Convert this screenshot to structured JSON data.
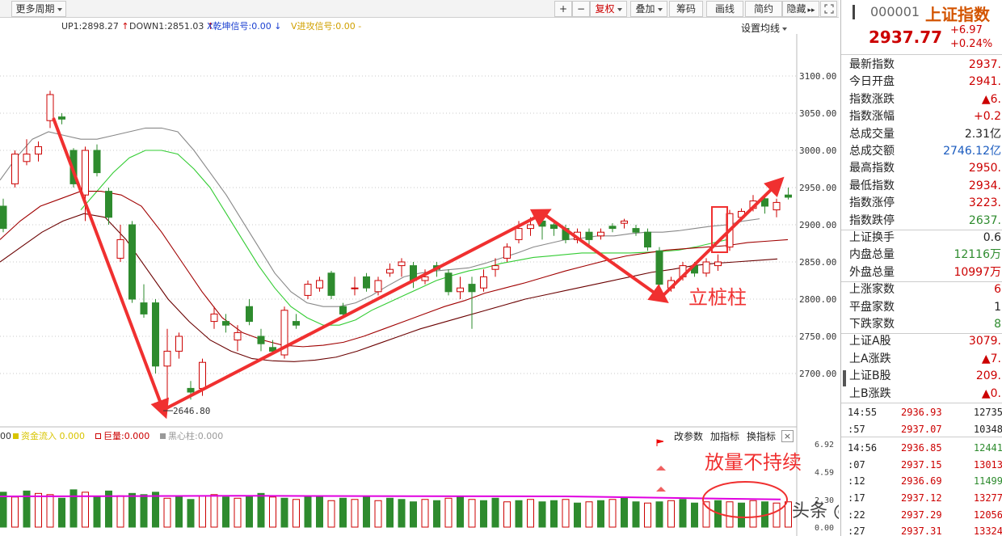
{
  "toolbar": {
    "more_period": "更多周期",
    "zoom_in": "+",
    "zoom_out": "−",
    "fuquan": "复权",
    "overlay": "叠加",
    "chips": "筹码",
    "draw_line": "画线",
    "simple": "简约",
    "hide": "隐藏",
    "hide_arrows": "▸▸",
    "fullscreen_icon": "expand-icon"
  },
  "indicators": {
    "up1": "UP1:2898.27",
    "down1": "DOWN1:2851.03",
    "x_signal": "X乾坤信号:0.00",
    "v_signal": "V进攻信号:0.00",
    "set_ma": "设置均线"
  },
  "price_axis": [
    "3100.00",
    "3050.00",
    "3000.00",
    "2950.00",
    "2900.00",
    "2850.00",
    "2800.00",
    "2750.00",
    "2700.00"
  ],
  "volume_axis": [
    "6.92",
    "4.59",
    "2.30",
    "0.00"
  ],
  "low_marker": "2646.80",
  "annotation_pile": "立桩柱",
  "annotation_volume": "放量不持续",
  "watermark": "头条 @朱超MSc",
  "volume_header": {
    "lead": "00",
    "fund_inflow": "资金流入 0.000",
    "big_volume": "巨量:0.000",
    "black_heart": "黑心柱:0.000"
  },
  "volume_buttons": {
    "change_param": "改参数",
    "add_indicator": "加指标",
    "switch_indicator": "换指标",
    "close": "×"
  },
  "colors": {
    "up": "#cc0000",
    "down": "#2e8b2e",
    "arrow": "#f03030",
    "ma_gray": "#888888",
    "ma_red": "#a00000",
    "ma_green": "#33cc33",
    "volume_line": "#e000e0"
  },
  "quote": {
    "code": "000001",
    "name": "上证指数",
    "price": "2937.77",
    "change": "+6.97",
    "change_pct": "+0.24%"
  },
  "stats": [
    {
      "label": "最新指数",
      "value": "2937.",
      "color": "#c00"
    },
    {
      "label": "今日开盘",
      "value": "2941.",
      "color": "#c00"
    },
    {
      "label": "指数涨跌",
      "value": "▲6.",
      "color": "#c00"
    },
    {
      "label": "指数涨幅",
      "value": "+0.2",
      "color": "#c00"
    },
    {
      "label": "总成交量",
      "value": "2.31亿",
      "color": "#222"
    },
    {
      "label": "总成交额",
      "value": "2746.12亿",
      "color": "#1a5bbf"
    },
    {
      "label": "最高指数",
      "value": "2950.",
      "color": "#c00"
    },
    {
      "label": "最低指数",
      "value": "2934.",
      "color": "#c00"
    },
    {
      "label": "指数涨停",
      "value": "3223.",
      "color": "#c00"
    },
    {
      "label": "指数跌停",
      "value": "2637.",
      "color": "#2e8b2e"
    },
    {
      "label": "上证换手",
      "value": "0.6",
      "color": "#222"
    },
    {
      "label": "内盘总量",
      "value": "12116万",
      "color": "#2e8b2e"
    },
    {
      "label": "外盘总量",
      "value": "10997万",
      "color": "#c00"
    },
    {
      "label": "上涨家数",
      "value": "6",
      "color": "#c00"
    },
    {
      "label": "平盘家数",
      "value": "1",
      "color": "#222"
    },
    {
      "label": "下跌家数",
      "value": "8",
      "color": "#2e8b2e"
    },
    {
      "label": "上证A股",
      "value": "3079.",
      "color": "#c00"
    },
    {
      "label": "上A涨跌",
      "value": "▲7.",
      "color": "#c00"
    },
    {
      "label": "上证B股",
      "value": "209.",
      "color": "#c00"
    },
    {
      "label": "上B涨跌",
      "value": "▲0.",
      "color": "#c00"
    }
  ],
  "ticks": [
    {
      "time": "14:55",
      "price": "2936.93",
      "vol": "12735",
      "vcolor": "#222"
    },
    {
      "time": ":57",
      "price": "2937.07",
      "vol": "10348",
      "vcolor": "#222"
    },
    {
      "time": "14:56",
      "price": "2936.85",
      "vol": "12441",
      "vcolor": "#2e8b2e"
    },
    {
      "time": ":07",
      "price": "2937.15",
      "vol": "13013",
      "vcolor": "#c00"
    },
    {
      "time": ":12",
      "price": "2936.69",
      "vol": "11499",
      "vcolor": "#2e8b2e"
    },
    {
      "time": ":17",
      "price": "2937.12",
      "vol": "13277",
      "vcolor": "#c00"
    },
    {
      "time": ":22",
      "price": "2937.29",
      "vol": "12056",
      "vcolor": "#c00"
    },
    {
      "time": ":27",
      "price": "2937.31",
      "vol": "13324",
      "vcolor": "#c00"
    }
  ],
  "chart_data": {
    "type": "candlestick",
    "title": "",
    "ylabel": "",
    "price_range": [
      2640,
      3100
    ],
    "candles": [
      {
        "o": 2925,
        "c": 2895,
        "h": 2935,
        "l": 2890
      },
      {
        "o": 2955,
        "c": 2995,
        "h": 3000,
        "l": 2950
      },
      {
        "o": 2985,
        "c": 2995,
        "h": 3015,
        "l": 2980
      },
      {
        "o": 2995,
        "c": 3005,
        "h": 3012,
        "l": 2985
      },
      {
        "o": 3040,
        "c": 3075,
        "h": 3080,
        "l": 3030
      },
      {
        "o": 3045,
        "c": 3042,
        "h": 3050,
        "l": 3035
      },
      {
        "o": 3000,
        "c": 2955,
        "h": 3003,
        "l": 2950
      },
      {
        "o": 2940,
        "c": 3000,
        "h": 3005,
        "l": 2905
      },
      {
        "o": 3000,
        "c": 2970,
        "h": 3008,
        "l": 2965
      },
      {
        "o": 2945,
        "c": 2910,
        "h": 2950,
        "l": 2900
      },
      {
        "o": 2855,
        "c": 2880,
        "h": 2900,
        "l": 2850
      },
      {
        "o": 2900,
        "c": 2800,
        "h": 2905,
        "l": 2795
      },
      {
        "o": 2795,
        "c": 2780,
        "h": 2820,
        "l": 2775
      },
      {
        "o": 2795,
        "c": 2710,
        "h": 2800,
        "l": 2700
      },
      {
        "o": 2710,
        "c": 2730,
        "h": 2760,
        "l": 2650
      },
      {
        "o": 2730,
        "c": 2750,
        "h": 2755,
        "l": 2720
      },
      {
        "o": 2680,
        "c": 2675,
        "h": 2690,
        "l": 2665
      },
      {
        "o": 2680,
        "c": 2715,
        "h": 2720,
        "l": 2670
      },
      {
        "o": 2770,
        "c": 2780,
        "h": 2790,
        "l": 2760
      },
      {
        "o": 2770,
        "c": 2765,
        "h": 2780,
        "l": 2755
      },
      {
        "o": 2745,
        "c": 2755,
        "h": 2765,
        "l": 2730
      },
      {
        "o": 2790,
        "c": 2770,
        "h": 2800,
        "l": 2765
      },
      {
        "o": 2750,
        "c": 2740,
        "h": 2760,
        "l": 2730
      },
      {
        "o": 2735,
        "c": 2730,
        "h": 2745,
        "l": 2725
      },
      {
        "o": 2725,
        "c": 2785,
        "h": 2790,
        "l": 2720
      },
      {
        "o": 2770,
        "c": 2765,
        "h": 2780,
        "l": 2760
      },
      {
        "o": 2805,
        "c": 2820,
        "h": 2825,
        "l": 2800
      },
      {
        "o": 2815,
        "c": 2825,
        "h": 2830,
        "l": 2810
      },
      {
        "o": 2835,
        "c": 2805,
        "h": 2838,
        "l": 2800
      },
      {
        "o": 2790,
        "c": 2780,
        "h": 2795,
        "l": 2775
      },
      {
        "o": 2815,
        "c": 2815,
        "h": 2830,
        "l": 2805
      },
      {
        "o": 2830,
        "c": 2815,
        "h": 2835,
        "l": 2810
      },
      {
        "o": 2810,
        "c": 2825,
        "h": 2830,
        "l": 2805
      },
      {
        "o": 2835,
        "c": 2840,
        "h": 2848,
        "l": 2830
      },
      {
        "o": 2845,
        "c": 2850,
        "h": 2855,
        "l": 2830
      },
      {
        "o": 2845,
        "c": 2825,
        "h": 2850,
        "l": 2815
      },
      {
        "o": 2825,
        "c": 2830,
        "h": 2840,
        "l": 2820
      },
      {
        "o": 2845,
        "c": 2840,
        "h": 2850,
        "l": 2830
      },
      {
        "o": 2835,
        "c": 2810,
        "h": 2840,
        "l": 2805
      },
      {
        "o": 2810,
        "c": 2815,
        "h": 2830,
        "l": 2800
      },
      {
        "o": 2820,
        "c": 2810,
        "h": 2830,
        "l": 2760
      },
      {
        "o": 2815,
        "c": 2830,
        "h": 2840,
        "l": 2810
      },
      {
        "o": 2840,
        "c": 2845,
        "h": 2855,
        "l": 2830
      },
      {
        "o": 2855,
        "c": 2870,
        "h": 2875,
        "l": 2850
      },
      {
        "o": 2880,
        "c": 2895,
        "h": 2905,
        "l": 2875
      },
      {
        "o": 2895,
        "c": 2900,
        "h": 2910,
        "l": 2885
      },
      {
        "o": 2905,
        "c": 2898,
        "h": 2910,
        "l": 2880
      },
      {
        "o": 2900,
        "c": 2895,
        "h": 2905,
        "l": 2885
      },
      {
        "o": 2895,
        "c": 2880,
        "h": 2900,
        "l": 2875
      },
      {
        "o": 2880,
        "c": 2890,
        "h": 2895,
        "l": 2875
      },
      {
        "o": 2890,
        "c": 2880,
        "h": 2895,
        "l": 2870
      },
      {
        "o": 2885,
        "c": 2890,
        "h": 2895,
        "l": 2880
      },
      {
        "o": 2898,
        "c": 2895,
        "h": 2902,
        "l": 2890
      },
      {
        "o": 2902,
        "c": 2905,
        "h": 2908,
        "l": 2895
      },
      {
        "o": 2895,
        "c": 2890,
        "h": 2900,
        "l": 2885
      },
      {
        "o": 2890,
        "c": 2870,
        "h": 2895,
        "l": 2865
      },
      {
        "o": 2865,
        "c": 2820,
        "h": 2870,
        "l": 2815
      },
      {
        "o": 2815,
        "c": 2825,
        "h": 2830,
        "l": 2810
      },
      {
        "o": 2830,
        "c": 2845,
        "h": 2850,
        "l": 2825
      },
      {
        "o": 2845,
        "c": 2835,
        "h": 2850,
        "l": 2830
      },
      {
        "o": 2835,
        "c": 2850,
        "h": 2855,
        "l": 2830
      },
      {
        "o": 2845,
        "c": 2850,
        "h": 2860,
        "l": 2838
      },
      {
        "o": 2870,
        "c": 2915,
        "h": 2920,
        "l": 2865
      },
      {
        "o": 2910,
        "c": 2918,
        "h": 2922,
        "l": 2905
      },
      {
        "o": 2922,
        "c": 2932,
        "h": 2940,
        "l": 2918
      },
      {
        "o": 2935,
        "c": 2925,
        "h": 2940,
        "l": 2915
      },
      {
        "o": 2920,
        "c": 2930,
        "h": 2935,
        "l": 2910
      },
      {
        "o": 2940,
        "c": 2937,
        "h": 2950,
        "l": 2934
      }
    ],
    "ma_lines": {
      "gray": [
        2960,
        2990,
        3015,
        3025,
        3020,
        3015,
        3015,
        3020,
        3025,
        3030,
        3030,
        3025,
        3000,
        2970,
        2940,
        2905,
        2870,
        2835,
        2810,
        2795,
        2790,
        2790,
        2795,
        2805,
        2818,
        2830,
        2835,
        2838,
        2840,
        2842,
        2848,
        2855,
        2862,
        2870,
        2875,
        2880,
        2882,
        2885,
        2885,
        2888,
        2890,
        2890,
        2892,
        2895,
        2898,
        2900,
        2905,
        2908
      ],
      "green": [
        2920,
        2945,
        2970,
        2990,
        3000,
        3000,
        2995,
        2975,
        2950,
        2915,
        2880,
        2845,
        2815,
        2790,
        2775,
        2765,
        2765,
        2772,
        2785,
        2795,
        2805,
        2815,
        2825,
        2832,
        2838,
        2842,
        2848,
        2852,
        2856,
        2858,
        2860,
        2862,
        2862,
        2862,
        2862,
        2863,
        2864,
        2866,
        2870,
        2875,
        2880
      ],
      "red": [
        2880,
        2905,
        2925,
        2935,
        2945,
        2945,
        2940,
        2925,
        2890,
        2850,
        2810,
        2775,
        2755,
        2745,
        2738,
        2736,
        2738,
        2742,
        2750,
        2760,
        2770,
        2780,
        2790,
        2798,
        2808,
        2815,
        2822,
        2830,
        2838,
        2845,
        2852,
        2858,
        2862,
        2866,
        2868,
        2870,
        2872,
        2876,
        2878,
        2880
      ],
      "darkred": [
        2850,
        2870,
        2890,
        2905,
        2915,
        2910,
        2880,
        2840,
        2800,
        2770,
        2745,
        2730,
        2720,
        2717,
        2716,
        2718,
        2722,
        2730,
        2740,
        2750,
        2760,
        2768,
        2776,
        2784,
        2792,
        2800,
        2806,
        2812,
        2818,
        2824,
        2830,
        2836,
        2840,
        2845,
        2848,
        2850,
        2852,
        2854
      ]
    },
    "volume": {
      "range": [
        0,
        6.92
      ],
      "line_level": 2.3,
      "bars": [
        2.9,
        2.5,
        3.0,
        2.8,
        2.7,
        2.4,
        3.1,
        2.9,
        2.5,
        3.0,
        2.6,
        2.8,
        2.7,
        2.9,
        2.4,
        2.5,
        2.3,
        2.6,
        2.7,
        2.5,
        2.4,
        2.6,
        2.8,
        2.5,
        2.4,
        2.3,
        2.5,
        2.6,
        2.2,
        2.4,
        2.3,
        2.5,
        2.2,
        2.4,
        2.3,
        2.1,
        2.3,
        2.2,
        2.4,
        2.5,
        2.3,
        2.2,
        2.4,
        2.1,
        2.2,
        2.3,
        2.1,
        2.2,
        2.3,
        2.0,
        2.1,
        2.2,
        2.3,
        2.4,
        2.1,
        2.0,
        2.1,
        2.2,
        2.3,
        2.0,
        2.1,
        2.2,
        2.1,
        2.0,
        2.2,
        2.1,
        2.0,
        2.1
      ],
      "up_flags": [
        0,
        1,
        0,
        1,
        1,
        0,
        0,
        1,
        0,
        0,
        1,
        0,
        0,
        0,
        1,
        0,
        0,
        1,
        1,
        0,
        1,
        0,
        0,
        1,
        0,
        1,
        0,
        0,
        1,
        0,
        1,
        0,
        1,
        0,
        0,
        0,
        1,
        0,
        1,
        0,
        1,
        0,
        0,
        1,
        0,
        1,
        0,
        0,
        1,
        0,
        1,
        0,
        1,
        0,
        0,
        1,
        0,
        1,
        0,
        0,
        1,
        0,
        1,
        0,
        1,
        0,
        1,
        1
      ]
    }
  }
}
